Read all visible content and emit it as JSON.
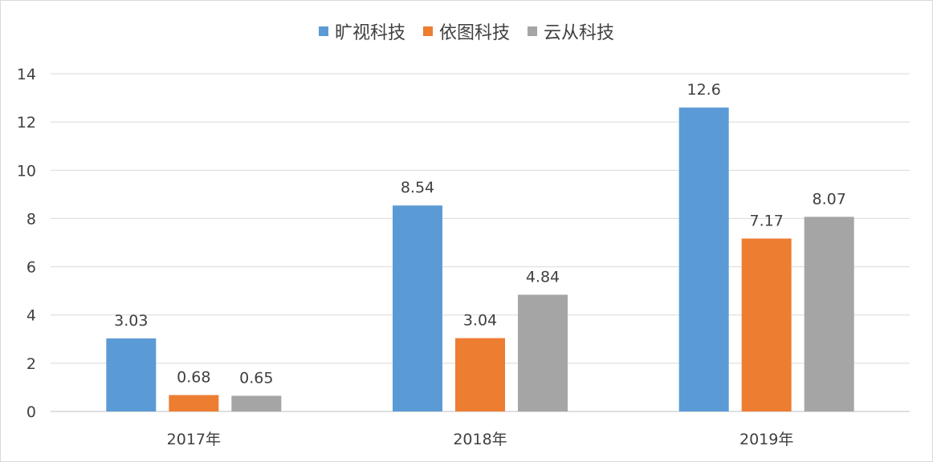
{
  "chart_data": {
    "type": "bar",
    "categories": [
      "2017年",
      "2018年",
      "2019年"
    ],
    "series": [
      {
        "name": "旷视科技",
        "values": [
          3.03,
          8.54,
          12.6
        ],
        "labels": [
          "3.03",
          "8.54",
          "12.6"
        ],
        "color": "#5b9bd5"
      },
      {
        "name": "依图科技",
        "values": [
          0.68,
          3.04,
          7.17
        ],
        "labels": [
          "0.68",
          "3.04",
          "7.17"
        ],
        "color": "#ed7d31"
      },
      {
        "name": "云从科技",
        "values": [
          0.65,
          4.84,
          8.07
        ],
        "labels": [
          "0.65",
          "4.84",
          "8.07"
        ],
        "color": "#a5a5a5"
      }
    ],
    "ylim": [
      0,
      14
    ],
    "yticks": [
      0,
      2,
      4,
      6,
      8,
      10,
      12,
      14
    ],
    "grid": true,
    "legend": "top-center",
    "title": "",
    "xlabel": "",
    "ylabel": ""
  }
}
